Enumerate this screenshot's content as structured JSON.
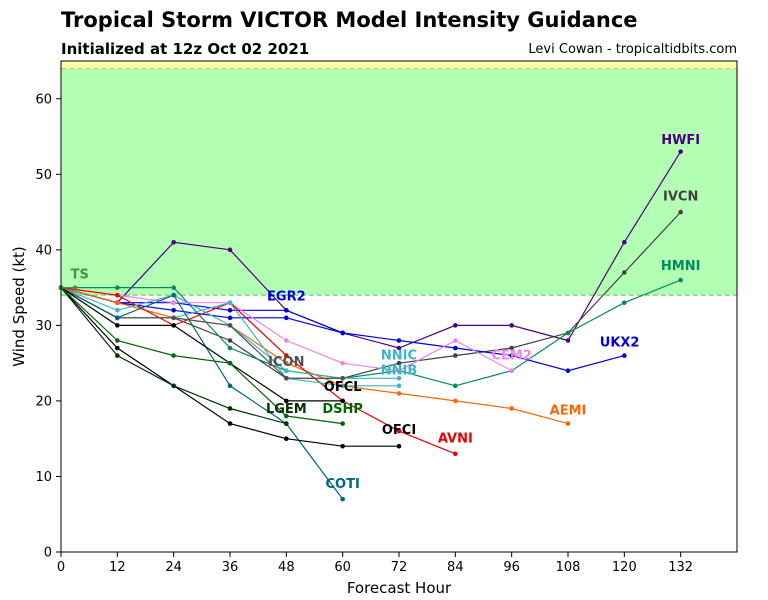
{
  "header": {
    "title": "Tropical Storm VICTOR Model Intensity Guidance",
    "subtitle": "Initialized at 12z Oct 02 2021",
    "credit": "Levi Cowan - tropicaltidbits.com"
  },
  "chart_data": {
    "type": "line",
    "title": "Tropical Storm VICTOR Model Intensity Guidance",
    "subtitle": "Initialized at 12z Oct 02 2021",
    "xlabel": "Forecast Hour",
    "ylabel": "Wind Speed (kt)",
    "xlim": [
      0,
      144
    ],
    "ylim": [
      0,
      65
    ],
    "xticks": [
      0,
      12,
      24,
      36,
      48,
      60,
      72,
      84,
      96,
      108,
      120,
      132
    ],
    "yticks": [
      0,
      10,
      20,
      30,
      40,
      50,
      60
    ],
    "grid": false,
    "bands": [
      {
        "name": "hurricane",
        "from": 34,
        "to": 64,
        "color": "#b3ffb3",
        "edge": "#66bb66"
      },
      {
        "name": "major",
        "from": 64,
        "to": 65,
        "color": "#ffffa8",
        "edge": "#c8c864"
      }
    ],
    "ts_label": "TS",
    "series": [
      {
        "name": "HWFI",
        "color": "#4b0082",
        "x": [
          0,
          12,
          24,
          36,
          48,
          60,
          72,
          84,
          96,
          108,
          120,
          132
        ],
        "y": [
          35,
          33,
          41,
          40,
          32,
          29,
          27,
          30,
          30,
          28,
          41,
          53
        ]
      },
      {
        "name": "IVCN",
        "color": "#404040",
        "x": [
          0,
          12,
          24,
          36,
          48,
          60,
          72,
          84,
          96,
          108,
          120,
          132
        ],
        "y": [
          35,
          31,
          31,
          28,
          23,
          23,
          25,
          26,
          27,
          29,
          37,
          45
        ]
      },
      {
        "name": "HMNI",
        "color": "#008c5a",
        "x": [
          0,
          12,
          24,
          36,
          48,
          60,
          72,
          84,
          96,
          108,
          120,
          132
        ],
        "y": [
          35,
          35,
          35,
          27,
          24,
          23,
          24,
          22,
          24,
          29,
          33,
          36
        ]
      },
      {
        "name": "UKX2",
        "color": "#0000dd",
        "x": [
          0,
          12,
          24,
          36,
          48,
          60,
          72,
          84,
          96,
          108,
          120
        ],
        "y": [
          35,
          33,
          33,
          32,
          32,
          29,
          28,
          27,
          26,
          24,
          26
        ]
      },
      {
        "name": "EGR2",
        "color": "#0000dd",
        "x": [
          0,
          12,
          24,
          36,
          48,
          60
        ],
        "y": [
          35,
          33,
          32,
          31,
          31,
          29
        ]
      },
      {
        "name": "CEM2",
        "color": "#ee82ee",
        "x": [
          0,
          12,
          24,
          36,
          48,
          60,
          72,
          84,
          96
        ],
        "y": [
          35,
          34,
          33,
          33,
          28,
          25,
          24,
          28,
          24
        ]
      },
      {
        "name": "AEMI",
        "color": "#ff6600",
        "x": [
          0,
          12,
          24,
          36,
          48,
          60,
          72,
          84,
          96,
          108
        ],
        "y": [
          35,
          33,
          31,
          30,
          25,
          22,
          21,
          20,
          19,
          17
        ]
      },
      {
        "name": "AVNI",
        "color": "#ee0000",
        "x": [
          0,
          12,
          24,
          36,
          48,
          60,
          72,
          84
        ],
        "y": [
          35,
          34,
          30,
          33,
          26,
          20,
          16,
          13
        ]
      },
      {
        "name": "NNIC",
        "color": "#3cb4c8",
        "x": [
          0,
          12,
          24,
          36,
          48,
          60,
          72
        ],
        "y": [
          35,
          32,
          34,
          30,
          24,
          23,
          23
        ]
      },
      {
        "name": "NNIB",
        "color": "#3cb4c8",
        "x": [
          0,
          12,
          24,
          36,
          48,
          60,
          72
        ],
        "y": [
          35,
          31,
          31,
          33,
          23,
          22,
          22
        ]
      },
      {
        "name": "ICON",
        "color": "#505050",
        "x": [
          0,
          12,
          24,
          36,
          48,
          60
        ],
        "y": [
          35,
          31,
          31,
          30,
          23,
          23
        ]
      },
      {
        "name": "COTI",
        "color": "#006482",
        "x": [
          0,
          12,
          24,
          36,
          48,
          60
        ],
        "y": [
          35,
          31,
          34,
          22,
          17,
          7
        ]
      },
      {
        "name": "OFCL",
        "color": "#000000",
        "x": [
          0,
          12,
          24,
          36,
          48,
          60
        ],
        "y": [
          35,
          30,
          30,
          25,
          20,
          20
        ]
      },
      {
        "name": "OFCI",
        "color": "#000000",
        "x": [
          0,
          12,
          24,
          36,
          48,
          60,
          72
        ],
        "y": [
          35,
          27,
          22,
          17,
          15,
          14,
          14
        ]
      },
      {
        "name": "LGEM",
        "color": "#003200",
        "x": [
          0,
          12,
          24,
          36,
          48
        ],
        "y": [
          35,
          26,
          22,
          19,
          17
        ]
      },
      {
        "name": "DSHP",
        "color": "#006400",
        "x": [
          0,
          12,
          24,
          36,
          48,
          60
        ],
        "y": [
          35,
          28,
          26,
          25,
          18,
          17
        ]
      },
      {
        "name": "TS",
        "color": "#3c963c",
        "x": [
          0,
          3
        ],
        "y": [
          35,
          35
        ]
      }
    ],
    "labels": [
      {
        "text": "HWFI",
        "x": 132,
        "y": 54,
        "color": "#4b0082"
      },
      {
        "text": "IVCN",
        "x": 132,
        "y": 46.5,
        "color": "#404040"
      },
      {
        "text": "HMNI",
        "x": 132,
        "y": 37.3,
        "color": "#008c5a"
      },
      {
        "text": "UKX2",
        "x": 119,
        "y": 27.2,
        "color": "#0000dd"
      },
      {
        "text": "EGR2",
        "x": 48,
        "y": 33.3,
        "color": "#0000dd"
      },
      {
        "text": "CEM2",
        "x": 96,
        "y": 25.5,
        "color": "#ee82ee"
      },
      {
        "text": "AEMI",
        "x": 108,
        "y": 18.2,
        "color": "#ff6600"
      },
      {
        "text": "AVNI",
        "x": 84,
        "y": 14.5,
        "color": "#ee0000"
      },
      {
        "text": "NNIC",
        "x": 72,
        "y": 25.5,
        "color": "#3cb4c8"
      },
      {
        "text": "NNIB",
        "x": 72,
        "y": 23.5,
        "color": "#3cb4c8"
      },
      {
        "text": "ICON",
        "x": 48,
        "y": 24.6,
        "color": "#505050"
      },
      {
        "text": "COTI",
        "x": 60,
        "y": 8.5,
        "color": "#006482"
      },
      {
        "text": "OFCL",
        "x": 60,
        "y": 21.3,
        "color": "#000000"
      },
      {
        "text": "OFCI",
        "x": 72,
        "y": 15.6,
        "color": "#000000"
      },
      {
        "text": "LGEM",
        "x": 48,
        "y": 18.4,
        "color": "#003200"
      },
      {
        "text": "DSHP",
        "x": 60,
        "y": 18.4,
        "color": "#006400"
      },
      {
        "text": "TS",
        "x": 4,
        "y": 36.2,
        "color": "#3c963c"
      }
    ]
  }
}
